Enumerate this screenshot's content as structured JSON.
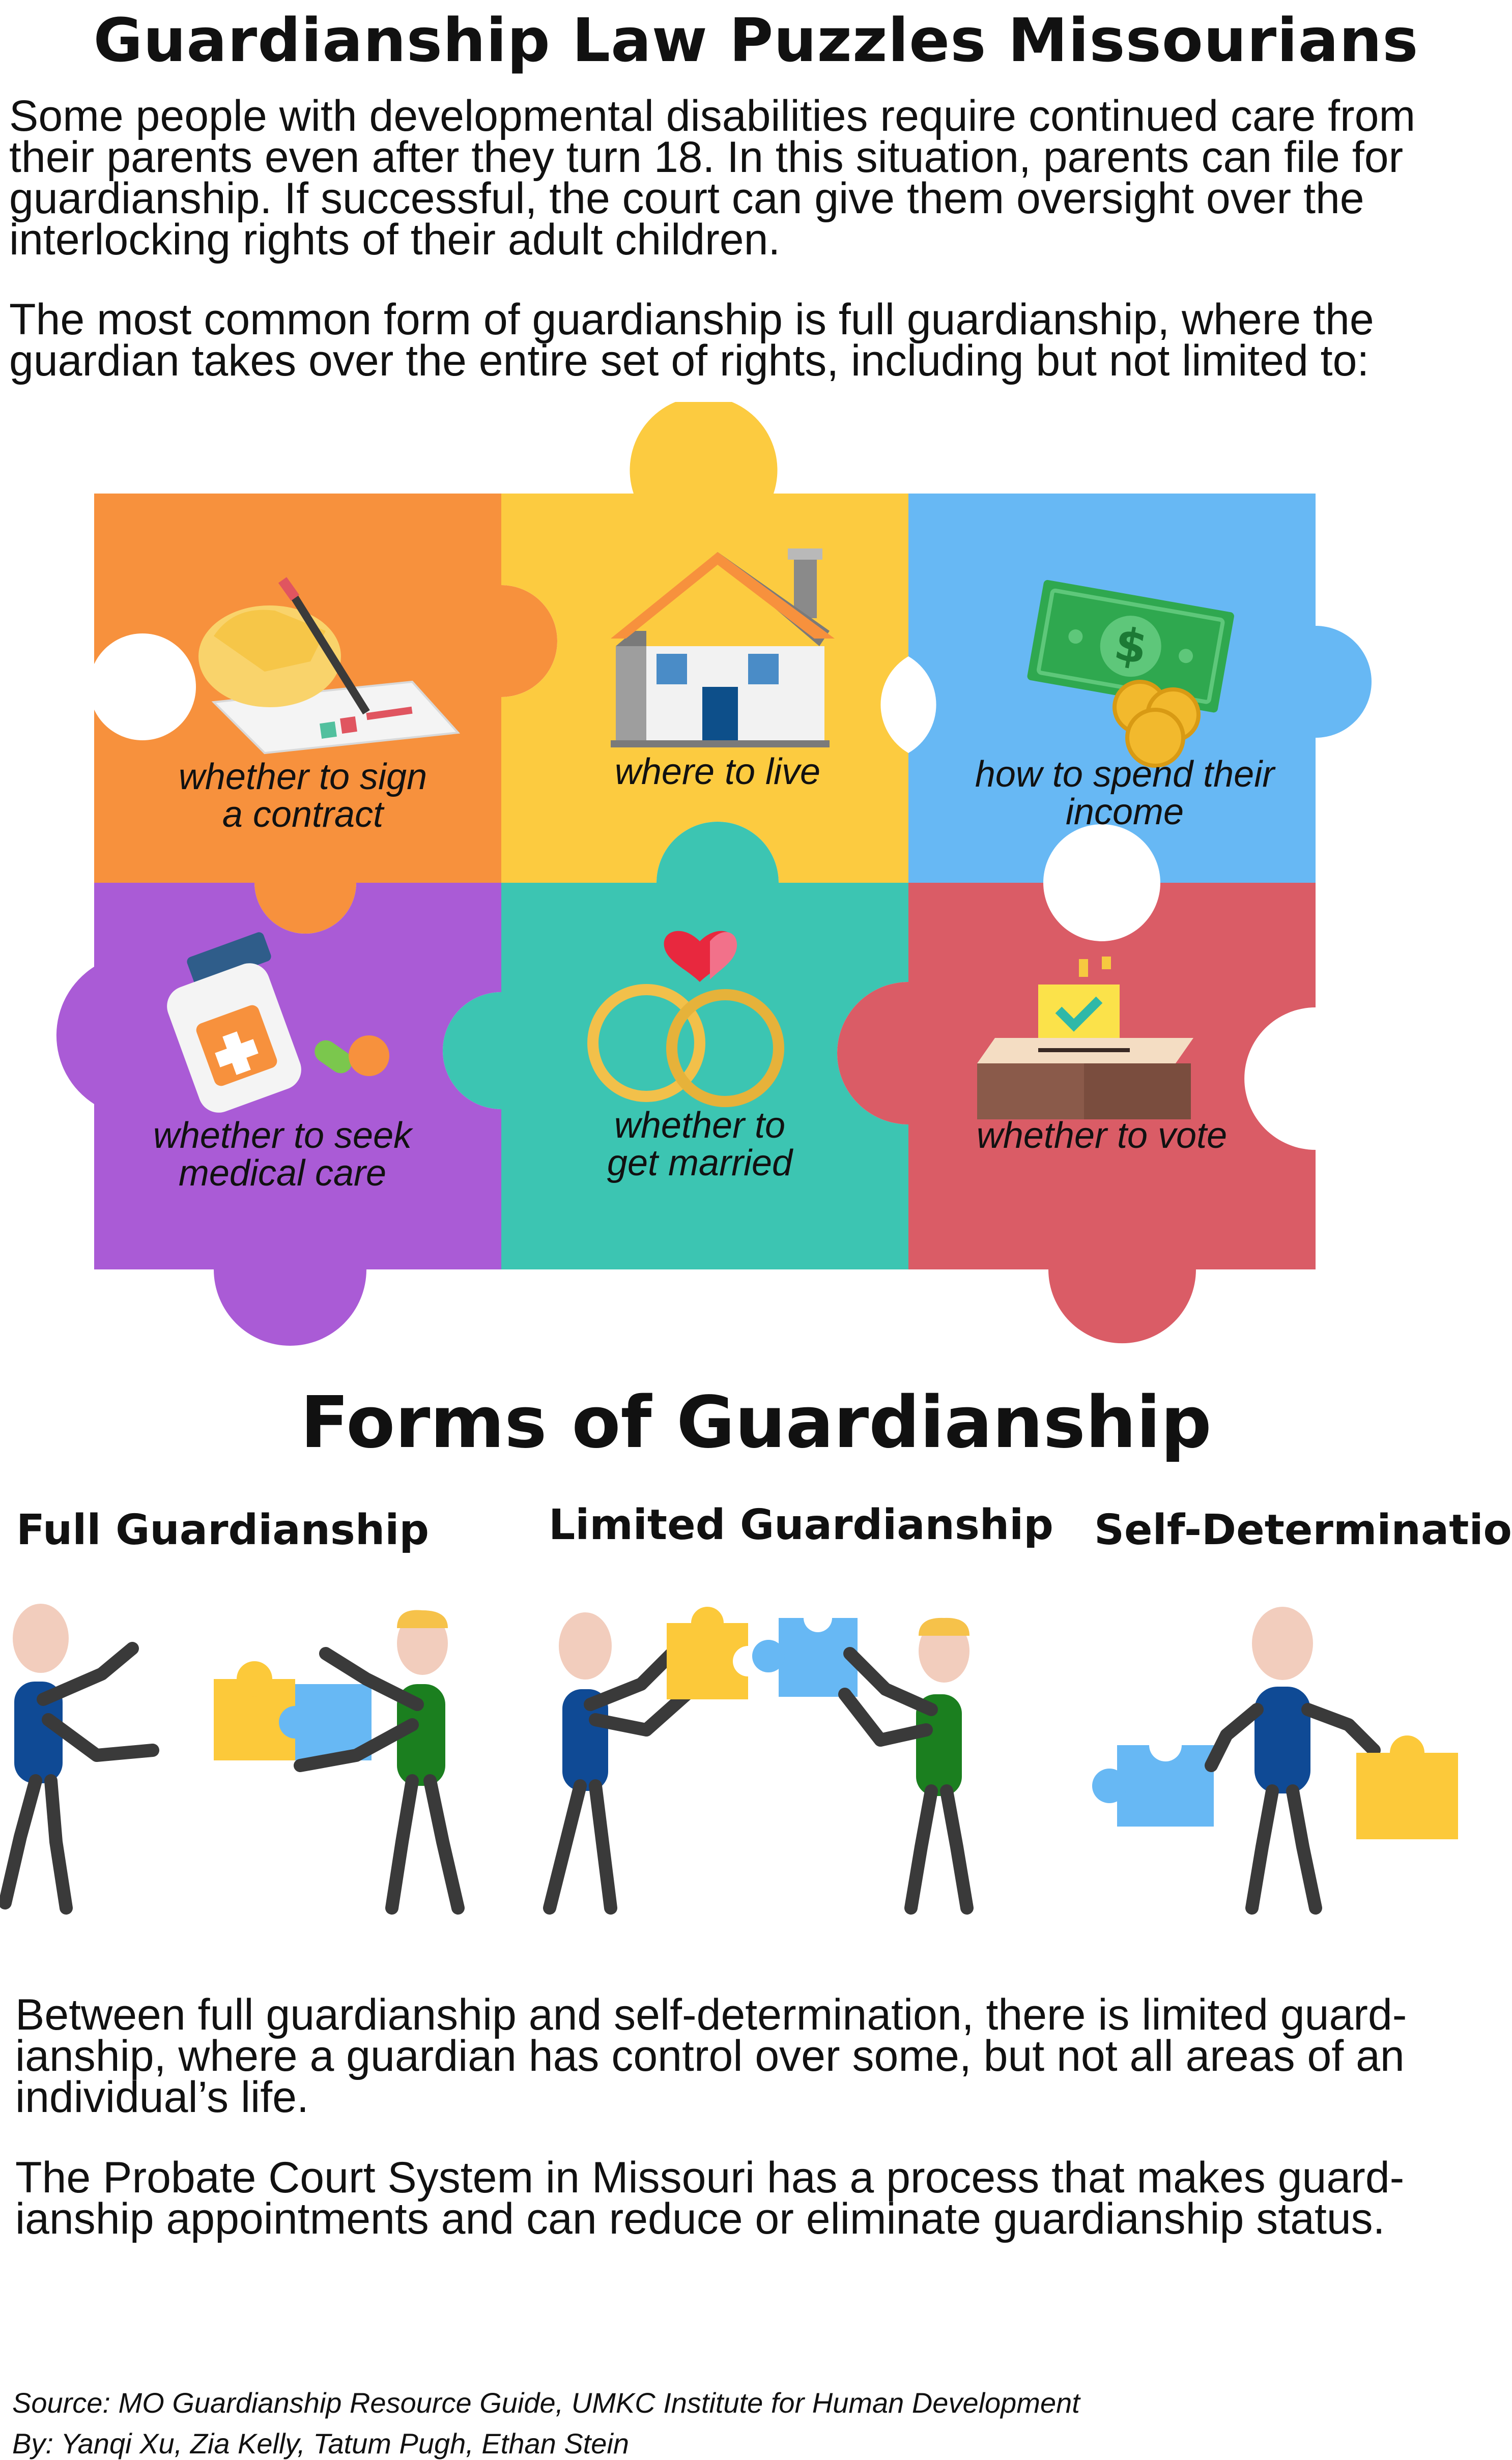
{
  "title": "Guardianship Law Puzzles Missourians",
  "intro": {
    "p1": "Some people with developmental disabilities require continued care from their parents even after they turn 18. In this situation, parents can file for guardianship. If successful, the court can give them oversight over the interlocking rights of their adult children.",
    "p2": "The most common form of guardianship is full guardianship, where the guardian takes over the entire set of rights, including but not limited to:"
  },
  "rights": [
    {
      "line1": "whether to sign",
      "line2": "a contract",
      "icon": "signing-contract-icon",
      "color": "#F7913D"
    },
    {
      "line1": "where to live",
      "line2": "",
      "icon": "house-icon",
      "color": "#FCCB40"
    },
    {
      "line1": "how to spend their",
      "line2": "income",
      "icon": "money-icon",
      "color": "#67B8F4"
    },
    {
      "line1": "whether to seek",
      "line2": "medical care",
      "icon": "medicine-bottle-icon",
      "color": "#AA5BD6"
    },
    {
      "line1": "whether to",
      "line2": "get married",
      "icon": "wedding-rings-icon",
      "color": "#3CC5B2"
    },
    {
      "line1": "whether to vote",
      "line2": "",
      "icon": "ballot-box-icon",
      "color": "#DA5C66"
    }
  ],
  "forms": {
    "heading": "Forms of Guardianship",
    "full": "Full Guardianship",
    "limited": "Limited Guardianship",
    "self": "Self-Determination"
  },
  "bottom": {
    "p1": "Between full guardianship and self-determination, there is limited guard-ianship, where a guardian has control over some, but not all areas of an individual’s life.",
    "p2": "The Probate Court System in Missouri has a process that makes guard-ianship appointments and can reduce or eliminate guardianship status."
  },
  "credits": {
    "source": "Source: MO Guardianship Resource Guide, UMKC Institute for Human Development",
    "by": "By: Yanqi Xu, Zia Kelly, Tatum Pugh, Ethan Stein"
  }
}
